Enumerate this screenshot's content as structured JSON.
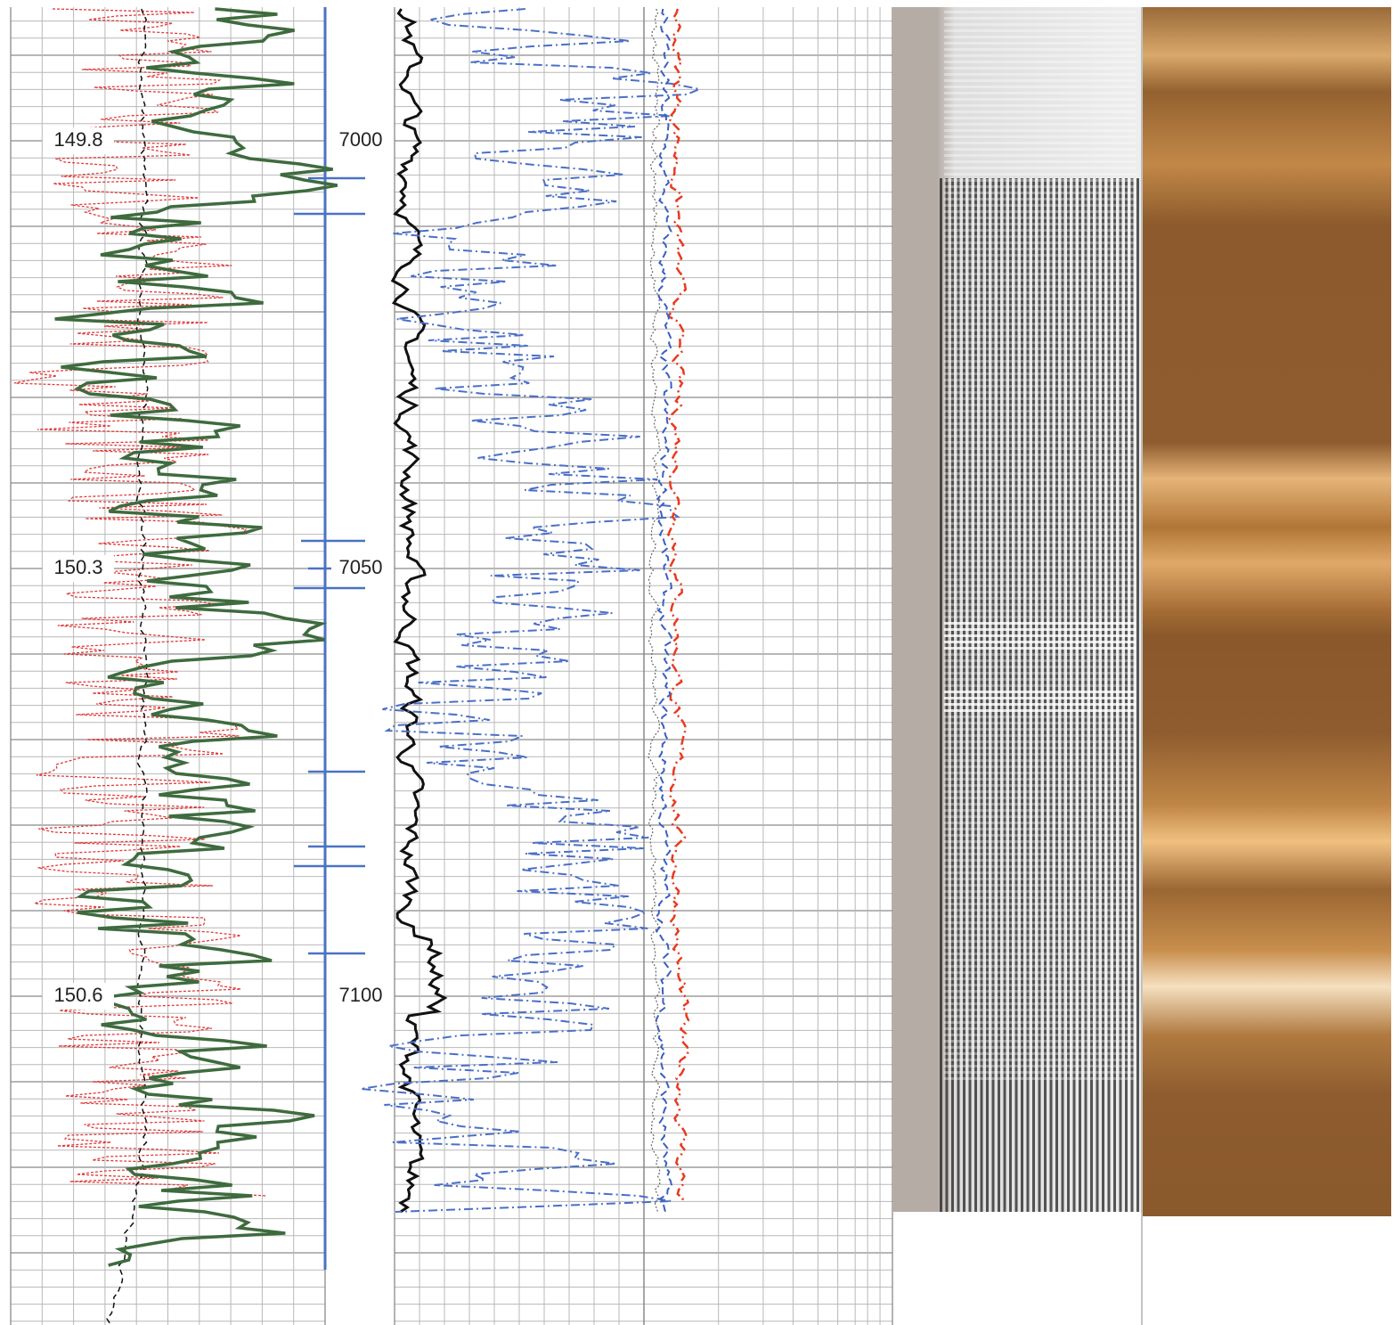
{
  "temperature_track": {
    "labels": [
      "149.8",
      "150.3",
      "150.6"
    ]
  },
  "depth_track": {
    "labels": [
      "7000",
      "7050",
      "7100"
    ]
  }
}
